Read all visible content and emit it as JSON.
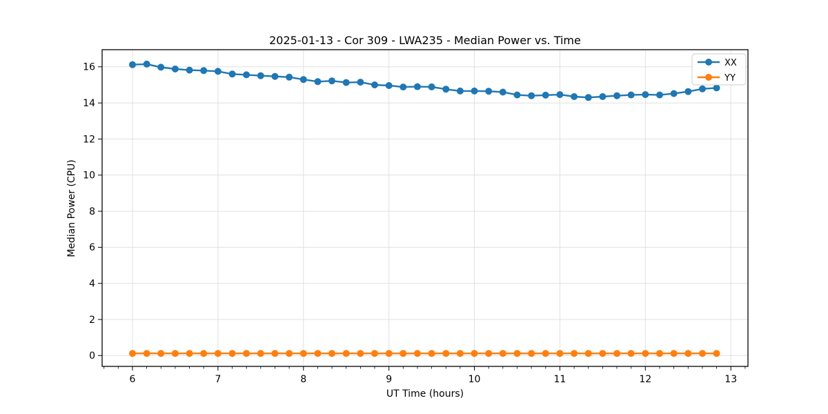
{
  "chart_data": {
    "type": "line",
    "title": "2025-01-13 - Cor 309 - LWA235 - Median Power vs. Time",
    "xlabel": "UT Time (hours)",
    "ylabel": "Median Power (CPU)",
    "xlim": [
      5.645,
      13.2
    ],
    "ylim": [
      -0.6,
      16.95
    ],
    "x_ticks": [
      6,
      7,
      8,
      9,
      10,
      11,
      12,
      13
    ],
    "y_ticks": [
      0,
      2,
      4,
      6,
      8,
      10,
      12,
      14,
      16
    ],
    "x_minor_step": 0.166667,
    "grid": true,
    "legend_position": "upper right",
    "colors": {
      "grid": "#e0e0e0",
      "spine": "#000000",
      "legend_border": "#cccccc"
    },
    "x": [
      6.0,
      6.167,
      6.333,
      6.5,
      6.667,
      6.833,
      7.0,
      7.167,
      7.333,
      7.5,
      7.667,
      7.833,
      8.0,
      8.167,
      8.333,
      8.5,
      8.667,
      8.833,
      9.0,
      9.167,
      9.333,
      9.5,
      9.667,
      9.833,
      10.0,
      10.167,
      10.333,
      10.5,
      10.667,
      10.833,
      11.0,
      11.167,
      11.333,
      11.5,
      11.667,
      11.833,
      12.0,
      12.167,
      12.333,
      12.5,
      12.667,
      12.833
    ],
    "series": [
      {
        "name": "XX",
        "color": "#1f77b4",
        "values": [
          16.12,
          16.15,
          15.98,
          15.88,
          15.82,
          15.79,
          15.75,
          15.6,
          15.56,
          15.51,
          15.47,
          15.43,
          15.3,
          15.18,
          15.22,
          15.13,
          15.15,
          15.0,
          14.96,
          14.88,
          14.9,
          14.89,
          14.76,
          14.66,
          14.66,
          14.65,
          14.6,
          14.44,
          14.4,
          14.43,
          14.46,
          14.35,
          14.3,
          14.35,
          14.4,
          14.44,
          14.46,
          14.44,
          14.52,
          14.63,
          14.78,
          14.83
        ]
      },
      {
        "name": "YY",
        "color": "#ff7f0e",
        "values": [
          0.12,
          0.12,
          0.12,
          0.12,
          0.12,
          0.12,
          0.12,
          0.12,
          0.12,
          0.12,
          0.12,
          0.12,
          0.12,
          0.12,
          0.12,
          0.12,
          0.12,
          0.12,
          0.12,
          0.12,
          0.12,
          0.12,
          0.12,
          0.12,
          0.12,
          0.12,
          0.12,
          0.12,
          0.12,
          0.12,
          0.12,
          0.12,
          0.12,
          0.12,
          0.12,
          0.12,
          0.12,
          0.12,
          0.12,
          0.12,
          0.12,
          0.12
        ]
      }
    ]
  }
}
